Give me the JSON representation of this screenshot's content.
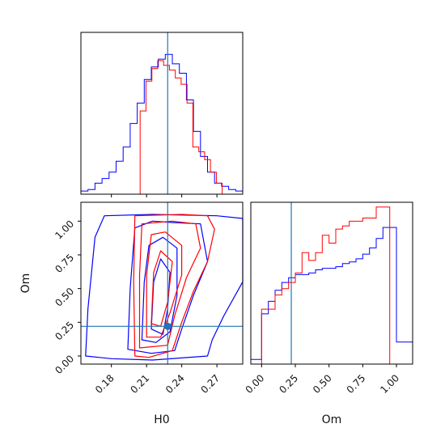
{
  "chart_data": [
    {
      "type": "histogram",
      "panel": "H0 marginal",
      "xlabel": "",
      "ylabel": "",
      "xlim": [
        0.154,
        0.292
      ],
      "xticks": [
        0.18,
        0.21,
        0.24,
        0.27
      ],
      "show_tick_labels": false,
      "truth_line": 0.228,
      "series": [
        {
          "color": "#0000ff",
          "edges": [
            0.154,
            0.16,
            0.166,
            0.172,
            0.178,
            0.184,
            0.19,
            0.196,
            0.202,
            0.208,
            0.214,
            0.22,
            0.226,
            0.232,
            0.238,
            0.244,
            0.25,
            0.256,
            0.262,
            0.268,
            0.274,
            0.28,
            0.286,
            0.292
          ],
          "heights": [
            0.02,
            0.03,
            0.07,
            0.1,
            0.14,
            0.21,
            0.3,
            0.45,
            0.58,
            0.73,
            0.81,
            0.86,
            0.89,
            0.83,
            0.77,
            0.6,
            0.4,
            0.24,
            0.14,
            0.07,
            0.05,
            0.03,
            0.02
          ]
        },
        {
          "color": "#ff0000",
          "edges": [
            0.2045,
            0.2095,
            0.2145,
            0.2195,
            0.2245,
            0.2295,
            0.2345,
            0.2395,
            0.2445,
            0.2495,
            0.2545,
            0.2595,
            0.2645,
            0.2695,
            0.2745
          ],
          "heights": [
            0.53,
            0.72,
            0.8,
            0.85,
            0.82,
            0.79,
            0.74,
            0.7,
            0.58,
            0.3,
            0.27,
            0.22,
            0.14,
            0.07
          ]
        }
      ]
    },
    {
      "type": "contour",
      "panel": "H0 vs Om",
      "xlabel": "H0",
      "ylabel": "Om",
      "xlim": [
        0.154,
        0.292
      ],
      "ylim": [
        -0.06,
        1.14
      ],
      "xticks": [
        0.18,
        0.21,
        0.24,
        0.27
      ],
      "xtick_labels": [
        "0.18",
        "0.21",
        "0.24",
        "0.27"
      ],
      "yticks": [
        0.0,
        0.25,
        0.5,
        0.75,
        1.0
      ],
      "ytick_labels": [
        "0.00",
        "0.25",
        "0.50",
        "0.75",
        "1.00"
      ],
      "truth_point": [
        0.228,
        0.22
      ],
      "series": [
        {
          "color": "#0000ff",
          "contours": [
            [
              [
                0.158,
                0.0
              ],
              [
                0.16,
                0.35
              ],
              [
                0.166,
                0.88
              ],
              [
                0.174,
                1.04
              ],
              [
                0.215,
                1.05
              ],
              [
                0.27,
                1.04
              ],
              [
                0.292,
                1.02
              ],
              [
                0.292,
                0.55
              ],
              [
                0.276,
                0.3
              ],
              [
                0.266,
                0.12
              ],
              [
                0.262,
                0.0
              ],
              [
                0.215,
                -0.03
              ],
              [
                0.18,
                -0.02
              ]
            ],
            [
              [
                0.194,
                0.05
              ],
              [
                0.196,
                0.5
              ],
              [
                0.2,
                0.95
              ],
              [
                0.215,
                1.0
              ],
              [
                0.232,
                0.99
              ],
              [
                0.256,
                0.98
              ],
              [
                0.262,
                0.7
              ],
              [
                0.25,
                0.45
              ],
              [
                0.24,
                0.2
              ],
              [
                0.234,
                0.04
              ],
              [
                0.214,
                0.02
              ]
            ],
            [
              [
                0.206,
                0.12
              ],
              [
                0.208,
                0.55
              ],
              [
                0.212,
                0.82
              ],
              [
                0.224,
                0.88
              ],
              [
                0.236,
                0.8
              ],
              [
                0.236,
                0.45
              ],
              [
                0.23,
                0.18
              ],
              [
                0.218,
                0.1
              ]
            ],
            [
              [
                0.214,
                0.2
              ],
              [
                0.216,
                0.55
              ],
              [
                0.222,
                0.72
              ],
              [
                0.23,
                0.62
              ],
              [
                0.228,
                0.35
              ],
              [
                0.224,
                0.16
              ]
            ]
          ]
        },
        {
          "color": "#ff0000",
          "contours": [
            [
              [
                0.2,
                0.0
              ],
              [
                0.199,
                0.55
              ],
              [
                0.2,
                1.04
              ],
              [
                0.24,
                1.05
              ],
              [
                0.262,
                1.04
              ],
              [
                0.268,
                0.94
              ],
              [
                0.262,
                0.7
              ],
              [
                0.25,
                0.48
              ],
              [
                0.24,
                0.25
              ],
              [
                0.232,
                0.04
              ],
              [
                0.212,
                -0.01
              ]
            ],
            [
              [
                0.204,
                0.06
              ],
              [
                0.204,
                0.6
              ],
              [
                0.206,
                0.98
              ],
              [
                0.232,
                1.0
              ],
              [
                0.252,
                0.98
              ],
              [
                0.256,
                0.8
              ],
              [
                0.244,
                0.58
              ],
              [
                0.234,
                0.3
              ],
              [
                0.228,
                0.08
              ]
            ],
            [
              [
                0.21,
                0.14
              ],
              [
                0.21,
                0.6
              ],
              [
                0.214,
                0.9
              ],
              [
                0.226,
                0.92
              ],
              [
                0.24,
                0.82
              ],
              [
                0.24,
                0.6
              ],
              [
                0.23,
                0.32
              ],
              [
                0.222,
                0.14
              ]
            ],
            [
              [
                0.214,
                0.24
              ],
              [
                0.216,
                0.62
              ],
              [
                0.222,
                0.78
              ],
              [
                0.232,
                0.7
              ],
              [
                0.228,
                0.4
              ],
              [
                0.222,
                0.22
              ]
            ]
          ]
        }
      ]
    },
    {
      "type": "histogram",
      "panel": "Om marginal",
      "xlabel": "Om",
      "ylabel": "",
      "xlim": [
        -0.08,
        1.12
      ],
      "xticks": [
        0.0,
        0.25,
        0.5,
        0.75,
        1.0
      ],
      "xtick_labels": [
        "0.00",
        "0.25",
        "0.50",
        "0.75",
        "1.00"
      ],
      "truth_line": 0.22,
      "series": [
        {
          "color": "#0000ff",
          "edges": [
            -0.08,
            0.0,
            0.05,
            0.1,
            0.15,
            0.2,
            0.25,
            0.3,
            0.35,
            0.4,
            0.45,
            0.5,
            0.55,
            0.6,
            0.65,
            0.7,
            0.75,
            0.8,
            0.85,
            0.9,
            0.95,
            1.0,
            1.05,
            1.12
          ],
          "heights": [
            0.03,
            0.32,
            0.4,
            0.47,
            0.52,
            0.55,
            0.57,
            0.57,
            0.58,
            0.6,
            0.61,
            0.61,
            0.62,
            0.64,
            0.65,
            0.67,
            0.7,
            0.74,
            0.8,
            0.87,
            0.87,
            0.14,
            0.14
          ]
        },
        {
          "color": "#ff0000",
          "edges": [
            0.0,
            0.05,
            0.1,
            0.15,
            0.2,
            0.25,
            0.3,
            0.35,
            0.4,
            0.45,
            0.5,
            0.55,
            0.6,
            0.65,
            0.7,
            0.75,
            0.8,
            0.85,
            0.9,
            0.95,
            1.0
          ],
          "heights": [
            0.35,
            0.35,
            0.44,
            0.48,
            0.52,
            0.58,
            0.71,
            0.66,
            0.71,
            0.82,
            0.77,
            0.86,
            0.88,
            0.91,
            0.91,
            0.93,
            0.93,
            1.0,
            1.0,
            0.0
          ]
        }
      ]
    }
  ]
}
